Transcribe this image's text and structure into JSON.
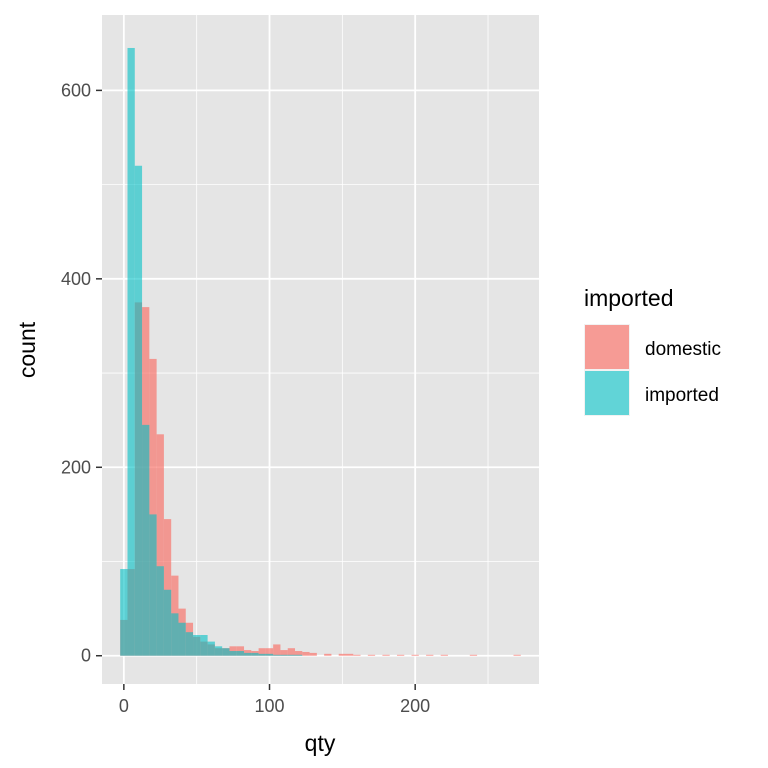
{
  "chart_data": {
    "type": "bar",
    "subtype": "overlapping-histogram",
    "title": "",
    "xlabel": "qty",
    "ylabel": "count",
    "xlim": [
      -15,
      285
    ],
    "ylim": [
      -30,
      680
    ],
    "xticks": [
      0,
      100,
      200
    ],
    "yticks": [
      0,
      200,
      400,
      600
    ],
    "bin_width": 5,
    "grid": true,
    "legend_position": "right",
    "legend_title": "imported",
    "colors": {
      "domestic": "#F8766D",
      "imported": "#00BFC4",
      "panel_bg": "#E5E5E5",
      "grid": "#FFFFFF"
    },
    "series": [
      {
        "name": "domestic",
        "bin_starts": [
          -2.5,
          2.5,
          7.5,
          12.5,
          17.5,
          22.5,
          27.5,
          32.5,
          37.5,
          42.5,
          47.5,
          52.5,
          57.5,
          62.5,
          67.5,
          72.5,
          77.5,
          82.5,
          87.5,
          92.5,
          97.5,
          102.5,
          107.5,
          112.5,
          117.5,
          122.5,
          127.5,
          137.5,
          147.5,
          152.5,
          157.5,
          167.5,
          177.5,
          187.5,
          197.5,
          207.5,
          217.5,
          237.5,
          267.5
        ],
        "values": [
          38,
          92,
          375,
          370,
          315,
          235,
          145,
          85,
          50,
          35,
          20,
          15,
          12,
          8,
          8,
          10,
          10,
          6,
          5,
          8,
          8,
          12,
          6,
          8,
          5,
          4,
          3,
          2,
          2,
          2,
          1,
          1,
          1,
          1,
          1,
          1,
          1,
          1,
          1
        ]
      },
      {
        "name": "imported",
        "bin_starts": [
          -2.5,
          2.5,
          7.5,
          12.5,
          17.5,
          22.5,
          27.5,
          32.5,
          37.5,
          42.5,
          47.5,
          52.5,
          57.5,
          62.5,
          67.5,
          72.5,
          77.5,
          82.5,
          87.5,
          92.5,
          97.5,
          102.5,
          107.5,
          112.5,
          117.5
        ],
        "values": [
          92,
          645,
          520,
          245,
          150,
          95,
          70,
          45,
          35,
          25,
          22,
          22,
          15,
          10,
          8,
          5,
          5,
          3,
          3,
          2,
          2,
          1,
          1,
          1,
          1
        ]
      }
    ]
  }
}
